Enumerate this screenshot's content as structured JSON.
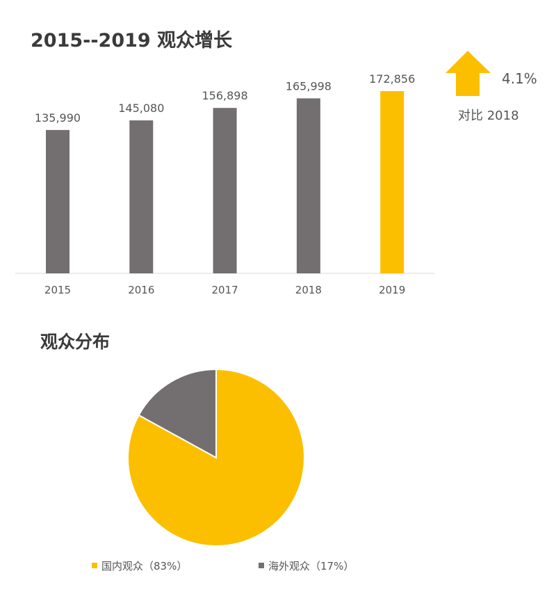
{
  "chart_data": [
    {
      "type": "bar",
      "title": "2015--2019 观众增长",
      "categories": [
        "2015",
        "2016",
        "2017",
        "2018",
        "2019"
      ],
      "values": [
        135990,
        145080,
        156898,
        165998,
        172856
      ],
      "data_labels": [
        "135,990",
        "145,080",
        "156,898",
        "165,998",
        "172,856"
      ],
      "ylim": [
        0,
        172856
      ],
      "grid": false,
      "colors": [
        "#736e6f",
        "#736e6f",
        "#736e6f",
        "#736e6f",
        "#fbbf00"
      ],
      "annotation": {
        "icon": "arrow-up-icon",
        "value": "4.1%",
        "label": "对比 2018",
        "color": "#fbbf00"
      }
    },
    {
      "type": "pie",
      "title": "观众分布",
      "slices": [
        {
          "name": "国内观众",
          "value": 83,
          "legend": "国内观众（83%）",
          "color": "#fbbf00"
        },
        {
          "name": "海外观众",
          "value": 17,
          "legend": "海外观众（17%）",
          "color": "#736e6f"
        }
      ],
      "legend_placement": "bottom"
    }
  ]
}
